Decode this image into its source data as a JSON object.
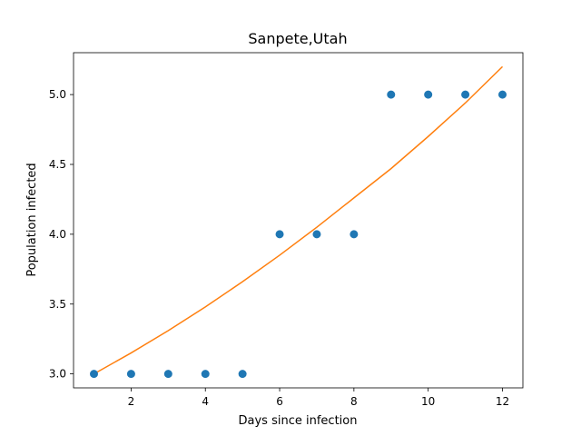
{
  "chart_data": {
    "type": "scatter",
    "title": "Sanpete,Utah",
    "xlabel": "Days since infection",
    "ylabel": "Population infected",
    "xlim": [
      0.45,
      12.55
    ],
    "ylim": [
      2.9,
      5.3
    ],
    "xticks": [
      2,
      4,
      6,
      8,
      10,
      12
    ],
    "yticks": [
      3.0,
      3.5,
      4.0,
      4.5,
      5.0
    ],
    "grid": false,
    "legend": "none",
    "series": [
      {
        "type": "scatter",
        "color": "#1f77b4",
        "x": [
          1,
          2,
          3,
          4,
          5,
          6,
          7,
          8,
          9,
          10,
          11,
          12
        ],
        "y": [
          3,
          3,
          3,
          3,
          3,
          4,
          4,
          4,
          5,
          5,
          5,
          5
        ]
      },
      {
        "type": "line",
        "color": "#ff7f0e",
        "x": [
          1,
          2,
          3,
          4,
          5,
          6,
          7,
          8,
          9,
          10,
          11,
          12
        ],
        "y": [
          3.0,
          3.15,
          3.31,
          3.48,
          3.66,
          3.85,
          4.05,
          4.26,
          4.47,
          4.7,
          4.94,
          5.2
        ]
      }
    ]
  }
}
